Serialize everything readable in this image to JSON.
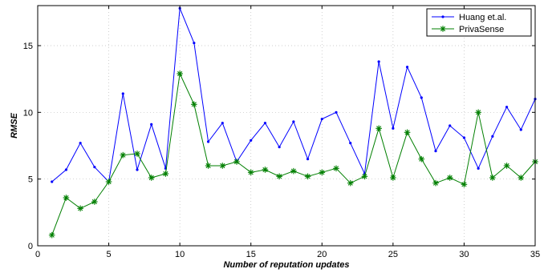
{
  "chart_data": {
    "type": "line",
    "title": "",
    "xlabel": "Number of reputation updates",
    "ylabel": "RMSE",
    "xlim": [
      0,
      35
    ],
    "ylim": [
      0,
      18
    ],
    "xticks": [
      0,
      5,
      10,
      15,
      20,
      25,
      30,
      35
    ],
    "yticks": [
      0,
      5,
      10,
      15
    ],
    "grid": true,
    "legend_position": "top-right",
    "x": [
      1,
      2,
      3,
      4,
      5,
      6,
      7,
      8,
      9,
      10,
      11,
      12,
      13,
      14,
      15,
      16,
      17,
      18,
      19,
      20,
      21,
      22,
      23,
      24,
      25,
      26,
      27,
      28,
      29,
      30,
      31,
      32,
      33,
      34,
      35
    ],
    "series": [
      {
        "name": "Huang et.al.",
        "color": "#0000ff",
        "marker": "dot",
        "values": [
          4.8,
          5.7,
          7.7,
          5.9,
          4.8,
          11.4,
          5.7,
          9.1,
          5.8,
          17.8,
          15.2,
          7.8,
          9.2,
          6.3,
          7.9,
          9.2,
          7.4,
          9.3,
          6.5,
          9.5,
          10.0,
          7.7,
          5.4,
          13.8,
          8.8,
          13.4,
          11.1,
          7.1,
          9.0,
          8.1,
          5.8,
          8.2,
          10.4,
          8.7,
          11.0
        ]
      },
      {
        "name": "PrivaSense",
        "color": "#007f00",
        "marker": "star",
        "values": [
          0.8,
          3.6,
          2.8,
          3.3,
          4.8,
          6.8,
          6.9,
          5.1,
          5.4,
          12.9,
          10.6,
          6.0,
          6.0,
          6.3,
          5.5,
          5.7,
          5.2,
          5.6,
          5.2,
          5.5,
          5.8,
          4.7,
          5.2,
          8.8,
          5.1,
          8.5,
          6.5,
          4.7,
          5.1,
          4.6,
          10.0,
          5.1,
          6.0,
          5.1,
          6.3
        ]
      }
    ]
  }
}
